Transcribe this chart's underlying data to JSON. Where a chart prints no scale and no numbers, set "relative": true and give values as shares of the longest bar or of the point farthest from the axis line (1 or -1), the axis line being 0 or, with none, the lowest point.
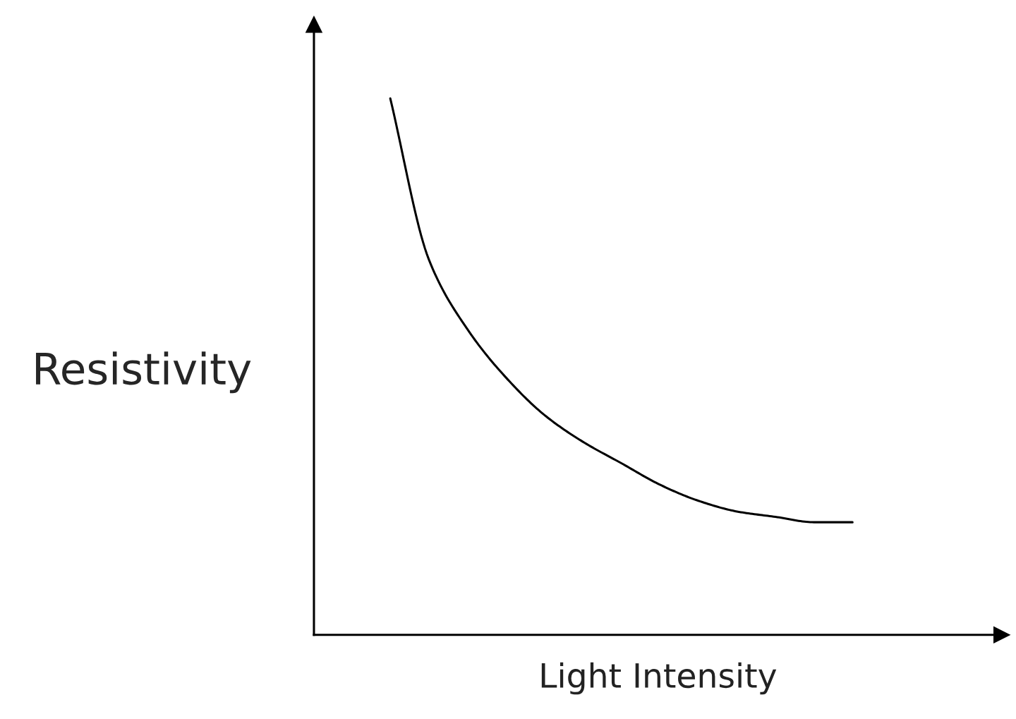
{
  "chart_data": {
    "type": "line",
    "xlabel": "Light Intensity",
    "ylabel": "Resistivity",
    "relative": true,
    "categories": [
      null,
      null,
      null,
      null,
      null,
      null,
      null,
      null,
      null,
      null,
      null,
      null,
      null
    ],
    "series": [
      {
        "color": "#000000",
        "values": [
          1.0,
          0.7,
          0.57,
          0.48,
          0.41,
          0.36,
          0.32,
          0.28,
          0.25,
          0.23,
          0.22,
          0.21,
          0.21
        ]
      }
    ]
  }
}
